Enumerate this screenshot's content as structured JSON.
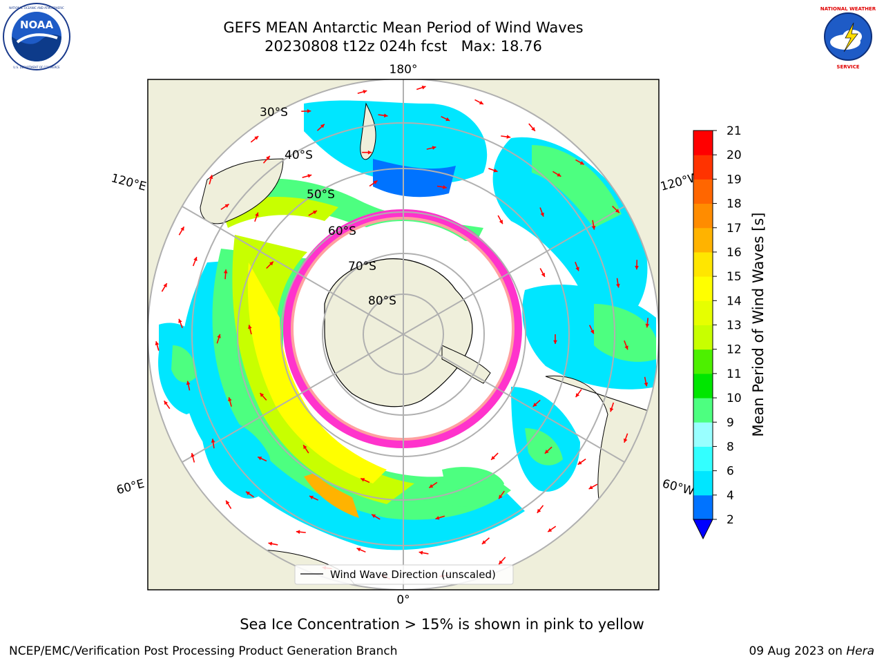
{
  "header": {
    "title_line1": "GEFS MEAN Antarctic Mean Period of Wind Waves",
    "title_line2": "20230808 t12z 024h fcst   Max: 18.76"
  },
  "logos": {
    "noaa_text": "NOAA",
    "noaa_ring_text": "NATIONAL OCEANIC AND ATMOSPHERIC ADMINISTRATION • U.S. DEPARTMENT OF COMMERCE",
    "nws_ring_text": "NATIONAL WEATHER SERVICE",
    "noaa_icon": "noaa-logo",
    "nws_icon": "nws-logo"
  },
  "map": {
    "projection": "south-polar-stereographic",
    "lon_labels": {
      "top": "180°",
      "bottom": "0°",
      "upper_left": "120°E",
      "upper_right": "120°W",
      "lower_left": "60°E",
      "lower_right": "60°W"
    },
    "lat_labels": [
      "30°S",
      "40°S",
      "50°S",
      "60°S",
      "70°S",
      "80°S"
    ],
    "legend": "Wind Wave Direction (unscaled)",
    "arrow_color": "#ff0000",
    "land_color": "#efefdb",
    "grid_color": "#b0b0b0",
    "sea_ice_colors": [
      "#ff33cc",
      "#ffa0a0",
      "#ffff66"
    ]
  },
  "colorbar": {
    "label": "Mean Period of Wind Waves [s]",
    "ticks": [
      "2",
      "4",
      "6",
      "8",
      "9",
      "10",
      "11",
      "12",
      "13",
      "14",
      "15",
      "16",
      "17",
      "18",
      "19",
      "20",
      "21"
    ],
    "colors": [
      "#0073ff",
      "#00e6ff",
      "#33ffff",
      "#99ffff",
      "#4dff80",
      "#00e600",
      "#4df000",
      "#c8ff00",
      "#e6ff00",
      "#ffff00",
      "#ffe600",
      "#ffb300",
      "#ff8c00",
      "#ff6600",
      "#ff3300",
      "#ff0000"
    ],
    "under_color": "#0000ff"
  },
  "note": "Sea Ice Concentration > 15% is shown in pink to yellow",
  "footer": {
    "left": "NCEP/EMC/Verification Post Processing Product Generation Branch",
    "right_date": "09 Aug 2023 on ",
    "right_host": "Hera"
  }
}
